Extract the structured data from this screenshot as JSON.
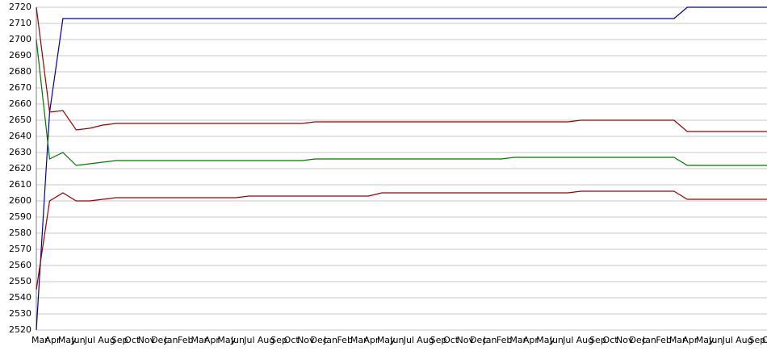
{
  "chart_data": {
    "type": "line",
    "categories": [
      "Mar",
      "Apr",
      "May",
      "Jun",
      "Jul",
      "Aug",
      "Sep",
      "Oct",
      "Nov",
      "Dec",
      "Jan",
      "Feb",
      "Mar",
      "Apr",
      "May",
      "Jun",
      "Jul",
      "Aug",
      "Sep",
      "Oct",
      "Nov",
      "Dec",
      "Jan",
      "Feb",
      "Mar",
      "Apr",
      "May",
      "Jun",
      "Jul",
      "Aug",
      "Sep",
      "Oct",
      "Nov",
      "Dec",
      "Jan",
      "Feb",
      "Mar",
      "Apr",
      "May",
      "Jun",
      "Jul",
      "Aug",
      "Sep",
      "Oct",
      "Nov",
      "Dec",
      "Jan",
      "Feb",
      "Mar",
      "Apr",
      "May",
      "Jun",
      "Jul",
      "Aug",
      "Sep",
      "Oct"
    ],
    "series": [
      {
        "color": "#000099",
        "values": [
          2520,
          2655,
          2713,
          2713,
          2713,
          2713,
          2713,
          2713,
          2713,
          2713,
          2713,
          2713,
          2713,
          2713,
          2713,
          2713,
          2713,
          2713,
          2713,
          2713,
          2713,
          2713,
          2713,
          2713,
          2713,
          2713,
          2713,
          2713,
          2713,
          2713,
          2713,
          2713,
          2713,
          2713,
          2713,
          2713,
          2713,
          2713,
          2713,
          2713,
          2713,
          2713,
          2713,
          2713,
          2713,
          2713,
          2713,
          2713,
          2713,
          2720,
          2720,
          2720,
          2720,
          2720,
          2720,
          2720
        ]
      },
      {
        "color": "#990000",
        "values": [
          2720,
          2655,
          2656,
          2644,
          2645,
          2647,
          2648,
          2648,
          2648,
          2648,
          2648,
          2648,
          2648,
          2648,
          2648,
          2648,
          2648,
          2648,
          2648,
          2648,
          2648,
          2649,
          2649,
          2649,
          2649,
          2649,
          2649,
          2649,
          2649,
          2649,
          2649,
          2649,
          2649,
          2649,
          2649,
          2649,
          2649,
          2649,
          2649,
          2649,
          2649,
          2650,
          2650,
          2650,
          2650,
          2650,
          2650,
          2650,
          2650,
          2643,
          2643,
          2643,
          2643,
          2643,
          2643,
          2643
        ]
      },
      {
        "color": "#007700",
        "values": [
          2700,
          2626,
          2630,
          2622,
          2623,
          2624,
          2625,
          2625,
          2625,
          2625,
          2625,
          2625,
          2625,
          2625,
          2625,
          2625,
          2625,
          2625,
          2625,
          2625,
          2625,
          2626,
          2626,
          2626,
          2626,
          2626,
          2626,
          2626,
          2626,
          2626,
          2626,
          2626,
          2626,
          2626,
          2626,
          2626,
          2627,
          2627,
          2627,
          2627,
          2627,
          2627,
          2627,
          2627,
          2627,
          2627,
          2627,
          2627,
          2627,
          2622,
          2622,
          2622,
          2622,
          2622,
          2622,
          2622
        ]
      },
      {
        "color": "#990000",
        "values": [
          2545,
          2600,
          2605,
          2600,
          2600,
          2601,
          2602,
          2602,
          2602,
          2602,
          2602,
          2602,
          2602,
          2602,
          2602,
          2602,
          2603,
          2603,
          2603,
          2603,
          2603,
          2603,
          2603,
          2603,
          2603,
          2603,
          2605,
          2605,
          2605,
          2605,
          2605,
          2605,
          2605,
          2605,
          2605,
          2605,
          2605,
          2605,
          2605,
          2605,
          2605,
          2606,
          2606,
          2606,
          2606,
          2606,
          2606,
          2606,
          2606,
          2601,
          2601,
          2601,
          2601,
          2601,
          2601,
          2601
        ]
      }
    ],
    "ylim": [
      2520,
      2720
    ],
    "yticks": [
      2520,
      2530,
      2540,
      2550,
      2560,
      2570,
      2580,
      2590,
      2600,
      2610,
      2620,
      2630,
      2640,
      2650,
      2660,
      2670,
      2680,
      2690,
      2700,
      2710,
      2720
    ],
    "grid": true
  }
}
